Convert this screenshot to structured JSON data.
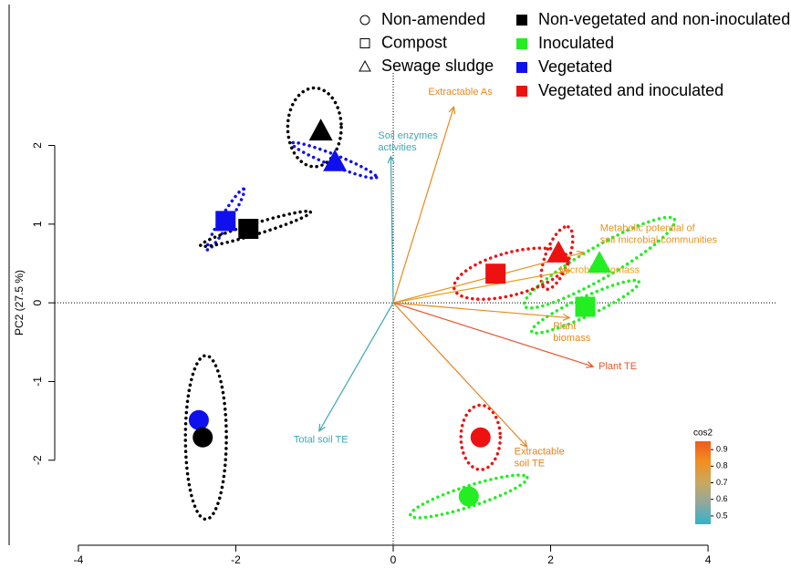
{
  "chart_data": {
    "type": "biplot",
    "ylabel": "PC2 (27.5 %)",
    "xlim": [
      -4.88,
      4.88
    ],
    "ylim": [
      -3.08,
      3.79
    ],
    "xticks": [
      -4,
      -2,
      0,
      2,
      4
    ],
    "yticks": [
      -2,
      -1,
      0,
      1,
      2
    ],
    "shape_legend": [
      {
        "name": "Non-amended",
        "shape": "circle"
      },
      {
        "name": "Compost",
        "shape": "square"
      },
      {
        "name": "Sewage sludge",
        "shape": "triangle"
      }
    ],
    "color_legend": [
      {
        "name": "Non-vegetated and non-inoculated",
        "color": "#000000"
      },
      {
        "name": "Inoculated",
        "color": "#22ee22"
      },
      {
        "name": "Vegetated",
        "color": "#1010ee"
      },
      {
        "name": "Vegetated and inoculated",
        "color": "#ee1111"
      }
    ],
    "points": [
      {
        "shape": "triangle",
        "color": "#000000",
        "x": -0.92,
        "y": 2.19,
        "ellipse": {
          "x": -1.0,
          "y": 2.23,
          "rx": 0.34,
          "ry": 0.5,
          "angle": 0
        }
      },
      {
        "shape": "triangle",
        "color": "#1010ee",
        "x": -0.74,
        "y": 1.8,
        "ellipse": {
          "x": -0.75,
          "y": 1.81,
          "rx": 0.58,
          "ry": 0.07,
          "angle": -22
        }
      },
      {
        "shape": "square",
        "color": "#1010ee",
        "x": -2.13,
        "y": 1.04,
        "ellipse": {
          "x": -2.13,
          "y": 1.06,
          "rx": 0.45,
          "ry": 0.06,
          "angle": 59
        }
      },
      {
        "shape": "square",
        "color": "#000000",
        "x": -1.84,
        "y": 0.94,
        "ellipse": {
          "x": -1.75,
          "y": 0.94,
          "rx": 0.73,
          "ry": 0.07,
          "angle": 17
        }
      },
      {
        "shape": "triangle",
        "color": "#ee1111",
        "x": 2.1,
        "y": 0.64,
        "ellipse": {
          "x": 2.08,
          "y": 0.57,
          "rx": 0.42,
          "ry": 0.15,
          "angle": 70
        }
      },
      {
        "shape": "triangle",
        "color": "#22ee22",
        "x": 2.62,
        "y": 0.51,
        "ellipse": {
          "x": 2.62,
          "y": 0.51,
          "rx": 1.1,
          "ry": 0.2,
          "angle": 30
        }
      },
      {
        "shape": "square",
        "color": "#ee1111",
        "x": 1.3,
        "y": 0.37,
        "ellipse": {
          "x": 1.5,
          "y": 0.37,
          "rx": 0.75,
          "ry": 0.27,
          "angle": 15
        }
      },
      {
        "shape": "square",
        "color": "#22ee22",
        "x": 2.44,
        "y": -0.05,
        "ellipse": {
          "x": 2.44,
          "y": -0.05,
          "rx": 0.75,
          "ry": 0.12,
          "angle": 25
        }
      },
      {
        "shape": "circle",
        "color": "#1010ee",
        "x": -2.47,
        "y": -1.49
      },
      {
        "shape": "circle",
        "color": "#000000",
        "x": -2.42,
        "y": -1.71,
        "ellipse": {
          "x": -2.38,
          "y": -1.71,
          "rx": 0.26,
          "ry": 1.04,
          "angle": 0
        }
      },
      {
        "shape": "circle",
        "color": "#ee1111",
        "x": 1.11,
        "y": -1.71,
        "ellipse": {
          "x": 1.11,
          "y": -1.71,
          "rx": 0.25,
          "ry": 0.41,
          "angle": 0
        }
      },
      {
        "shape": "circle",
        "color": "#22ee22",
        "x": 0.96,
        "y": -2.46,
        "ellipse": {
          "x": 0.96,
          "y": -2.46,
          "rx": 0.78,
          "ry": 0.13,
          "angle": 18
        }
      }
    ],
    "variables": [
      {
        "label": [
          "Extractable As"
        ],
        "x": 0.77,
        "y": 2.49,
        "color": "#e8891c"
      },
      {
        "label": [
          "Soil enzymes",
          "activities"
        ],
        "x": -0.03,
        "y": 1.86,
        "color": "#3aa9b5"
      },
      {
        "label": [
          "Metabolic potential of",
          "soil microbial communities"
        ],
        "x": 2.42,
        "y": 0.64,
        "color": "#e8931c"
      },
      {
        "label": [
          "Microbial biomass"
        ],
        "x": 2.25,
        "y": 0.41,
        "color": "#e8a21c"
      },
      {
        "label": [
          "Plant",
          "biomass"
        ],
        "x": 2.24,
        "y": -0.19,
        "color": "#e8891c"
      },
      {
        "label": [
          "Plant TE"
        ],
        "x": 2.54,
        "y": -0.81,
        "color": "#e8552a"
      },
      {
        "label": [
          "Extractable",
          "soil TE"
        ],
        "x": 1.7,
        "y": -1.83,
        "color": "#e8801c"
      },
      {
        "label": [
          "Total soil TE"
        ],
        "x": -0.94,
        "y": -1.63,
        "color": "#3aa9b5"
      }
    ],
    "colorbar": {
      "title": "cos2",
      "lim": [
        0.45,
        0.95
      ],
      "ticks": [
        0.5,
        0.6,
        0.7,
        0.8,
        0.9
      ],
      "colors": [
        "#2fb4c8",
        "#8fa8a0",
        "#c9a860",
        "#f09020",
        "#f05a1e"
      ]
    }
  }
}
